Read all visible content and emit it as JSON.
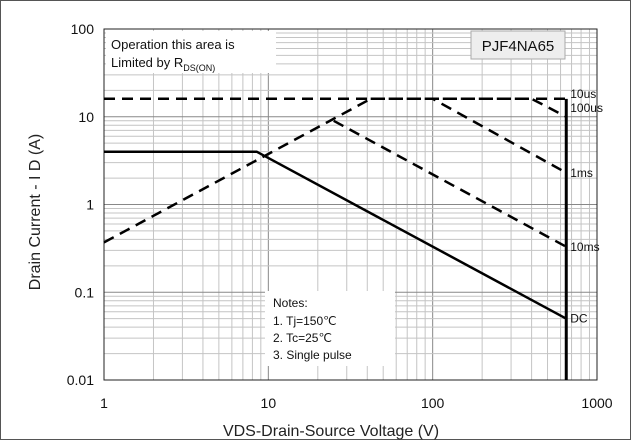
{
  "chart_data": {
    "type": "line",
    "title": "PJF4NA65",
    "xlabel": "VDS-Drain-Source Voltage (V)",
    "ylabel": "Drain Current - I D (A)",
    "xscale": "log",
    "yscale": "log",
    "xlim": [
      1,
      1000
    ],
    "ylim": [
      0.01,
      100
    ],
    "x_ticks": [
      "1",
      "10",
      "100",
      "1000"
    ],
    "y_ticks": [
      "0.01",
      "0.1",
      "1",
      "10",
      "100"
    ],
    "grid": true,
    "annotation": {
      "line1": "Operation this area is",
      "line2_prefix": "Limited  by R",
      "line2_sub": "DS(ON)"
    },
    "notes": [
      "Notes:",
      "1. Tj=150℃",
      "2. Tc=25℃",
      "3. Single pulse"
    ],
    "rdson_limit": {
      "name": "",
      "style": "dashed",
      "points": [
        [
          1,
          0.37
        ],
        [
          42,
          16
        ]
      ]
    },
    "series": [
      {
        "name": "10us",
        "style": "dashed",
        "points": [
          [
            42,
            16
          ],
          [
            400,
            16
          ],
          [
            650,
            10
          ]
        ]
      },
      {
        "name": "100us",
        "style": "dashed",
        "points": [
          [
            1,
            16
          ],
          [
            650,
            16
          ]
        ]
      },
      {
        "name": "1ms",
        "style": "dashed",
        "points": [
          [
            42,
            16
          ],
          [
            100,
            16
          ],
          [
            650,
            2.3
          ]
        ]
      },
      {
        "name": "10ms",
        "style": "dashed",
        "points": [
          [
            25,
            9
          ],
          [
            650,
            0.33
          ]
        ]
      },
      {
        "name": "DC",
        "style": "solid",
        "points": [
          [
            1,
            4
          ],
          [
            8.5,
            4
          ],
          [
            650,
            0.05
          ]
        ]
      }
    ],
    "bv_limit": {
      "style": "solid",
      "x": 650,
      "y_range": [
        0.01,
        16
      ]
    }
  }
}
